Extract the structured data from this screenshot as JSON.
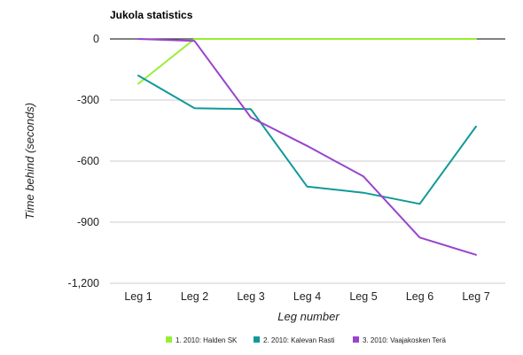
{
  "chart_data": {
    "type": "line",
    "title": "Jukola statistics",
    "xlabel": "Leg number",
    "ylabel": "Time behind (seconds)",
    "categories": [
      "Leg 1",
      "Leg 2",
      "Leg 3",
      "Leg 4",
      "Leg 5",
      "Leg 6",
      "Leg 7"
    ],
    "yticks": [
      0,
      -300,
      -600,
      -900,
      -1200
    ],
    "ytick_labels": [
      "0",
      "-300",
      "-600",
      "-900",
      "-1,200"
    ],
    "ylim": [
      -1200,
      0
    ],
    "grid": true,
    "legend_position": "bottom",
    "series": [
      {
        "name": "1. 2010: Halden SK",
        "color": "#99ee33",
        "values": [
          -220,
          0,
          0,
          0,
          0,
          0,
          0
        ]
      },
      {
        "name": "2. 2010: Kalevan Rasti",
        "color": "#119999",
        "values": [
          -180,
          -340,
          -345,
          -725,
          -755,
          -810,
          -430
        ]
      },
      {
        "name": "3. 2010: Vaajakosken Terä",
        "color": "#9944cc",
        "values": [
          0,
          -10,
          -385,
          -525,
          -675,
          -975,
          -1060
        ]
      }
    ]
  }
}
